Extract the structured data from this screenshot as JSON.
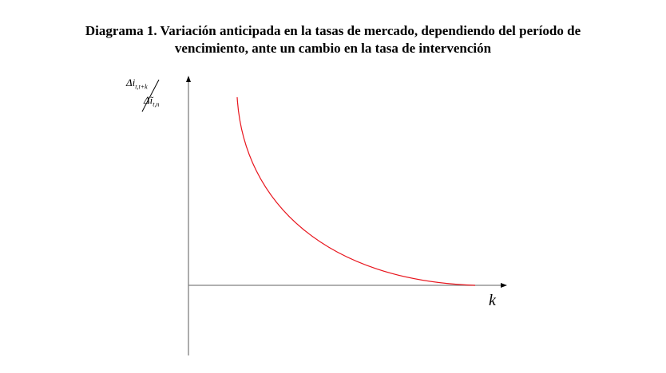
{
  "title": {
    "line1": "Diagrama 1. Variación anticipada en la tasas de mercado, dependiendo del período de",
    "line2": "vencimiento, ante un cambio en la tasa de intervención"
  },
  "axes": {
    "y_label_numerator": "Δi",
    "y_label_numerator_sub": "t,t+k",
    "y_label_denominator": "Δĩ",
    "y_label_denominator_sub": "t,n",
    "x_label": "k"
  },
  "curve": {
    "color": "#e8141c",
    "shape": "decreasing convex, asymptotic to zero"
  },
  "axis_color": "#808080"
}
